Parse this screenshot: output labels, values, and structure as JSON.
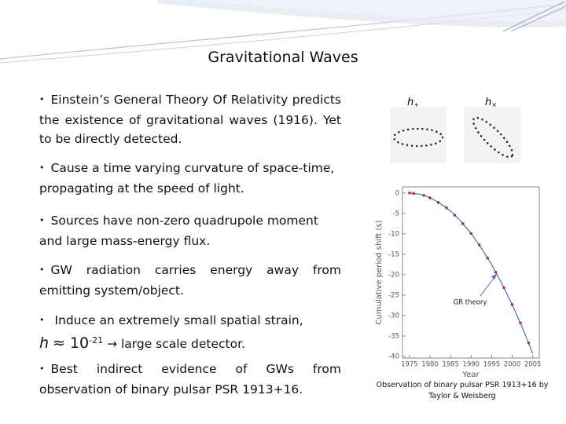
{
  "title": "Gravitational Waves",
  "bullets": [
    "Einstein’s General Theory Of Relativity predicts the existence of gravitational waves (1916). Yet to be directly detected.",
    "Cause a time varying curvature of space-time, propagating at the speed of light.",
    "Sources have non-zero quadrupole moment and large mass-energy flux.",
    "GW radiation carries energy away from emitting system/object.",
    {
      "text": "Induce an extremely small spatial strain,",
      "symbol": "h",
      "formula": "≈ 10",
      "exponent": "-21",
      "result": "→ large scale detector."
    },
    "Best indirect evidence of GWs from observation of binary pulsar PSR 1913+16."
  ],
  "polarizations": [
    {
      "symbol": "h",
      "subscript": "+"
    },
    {
      "symbol": "h",
      "subscript": "×"
    }
  ],
  "chart_data": {
    "type": "scatter",
    "x_label": "Year",
    "y_label": "Cumulative period shift (s)",
    "annotation": "GR theory",
    "xlim": [
      1973.3,
      2006.6
    ],
    "ylim": [
      -40.4,
      1.5
    ],
    "xticks": [
      1975,
      1980,
      1985,
      1990,
      1995,
      2000,
      2005
    ],
    "yticks": [
      0,
      -5,
      -10,
      -15,
      -20,
      -25,
      -30,
      -35,
      -40
    ],
    "points": {
      "color": "#c0282d",
      "x": [
        1975,
        1976,
        1978.5,
        1980,
        1982,
        1984,
        1986,
        1988,
        1990,
        1992,
        1994,
        1996,
        1998,
        2000,
        2002,
        2004
      ],
      "values": [
        0,
        -0.1,
        -0.6,
        -1.2,
        -2.3,
        -3.6,
        -5.4,
        -7.5,
        -9.9,
        -12.7,
        -15.9,
        -19.4,
        -23.2,
        -27.3,
        -31.8,
        -36.7
      ]
    },
    "theory": {
      "color": "#4a7fc1",
      "x": [
        1975,
        1977.5,
        1980,
        1982.5,
        1985,
        1987.5,
        1990,
        1992.5,
        1995,
        1997.5,
        2000,
        2002.5,
        2005
      ],
      "values": [
        0,
        -0.3,
        -1.1,
        -2.6,
        -4.4,
        -6.9,
        -9.9,
        -13.5,
        -17.5,
        -22.2,
        -27.3,
        -33.0,
        -39.3
      ]
    }
  },
  "caption": [
    "Observation of binary pulsar PSR  1913+16 by",
    "Taylor & Weisberg"
  ]
}
